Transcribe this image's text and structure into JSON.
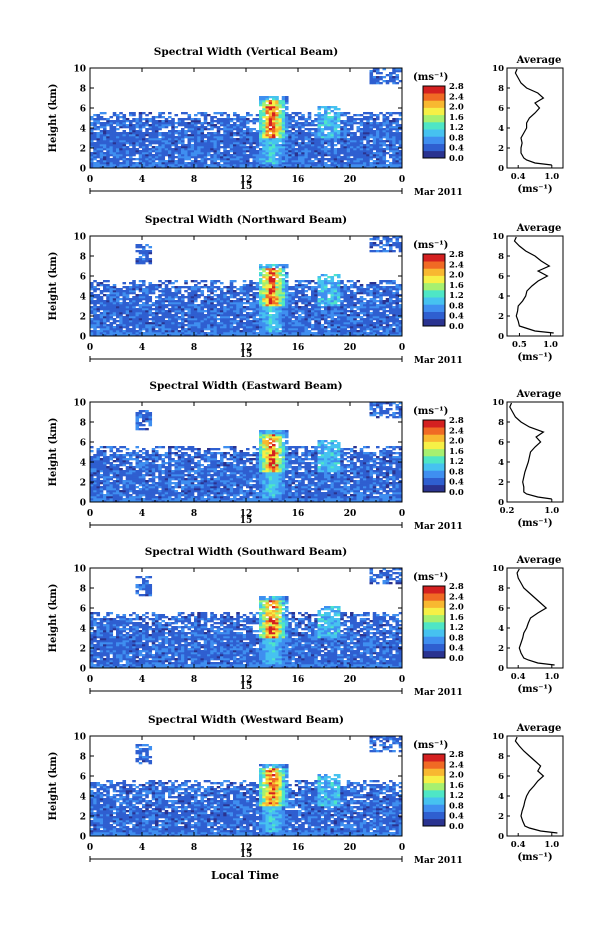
{
  "figure": {
    "xlabel": "Local Time",
    "date_label": "Mar 2011",
    "day_label": "15"
  },
  "colorbar": {
    "unit": "(ms⁻¹)",
    "tick_labels": [
      "2.8",
      "2.4",
      "2.0",
      "1.6",
      "1.2",
      "0.8",
      "0.4",
      "0.0"
    ],
    "colors": [
      "#2a3390",
      "#2f5fd0",
      "#3f8ff0",
      "#46c2f0",
      "#4ee6c6",
      "#a6f070",
      "#f6f046",
      "#f8b830",
      "#f06a24",
      "#d42020"
    ]
  },
  "chart_data": [
    {
      "type": "heatmap",
      "title": "Spectral Width (Vertical Beam)",
      "ylabel": "Height (km)",
      "xlim": [
        0,
        24
      ],
      "ylim": [
        0,
        10
      ],
      "x_ticks": [
        "0",
        "4",
        "8",
        "12",
        "16",
        "20",
        "0"
      ],
      "y_ticks": [
        "0",
        "2",
        "4",
        "6",
        "8",
        "10"
      ],
      "zlim": [
        0.0,
        2.8
      ],
      "profile": {
        "title": "Average",
        "xlabel": "(ms⁻¹)",
        "x_ticks": [
          "0.4",
          "1.0"
        ],
        "xlim": [
          0.2,
          1.2
        ],
        "y_ticks": [
          "0",
          "2",
          "4",
          "6",
          "8",
          "10"
        ],
        "height": [
          0.3,
          0.5,
          0.8,
          1.0,
          1.5,
          2.0,
          2.5,
          3.0,
          3.5,
          4.0,
          4.5,
          5.0,
          5.5,
          6.0,
          6.5,
          7.0,
          7.5,
          8.0,
          8.5,
          9.0,
          9.5,
          9.9
        ],
        "value": [
          1.0,
          0.7,
          0.55,
          0.5,
          0.45,
          0.45,
          0.47,
          0.45,
          0.5,
          0.55,
          0.55,
          0.6,
          0.7,
          0.78,
          0.7,
          0.85,
          0.75,
          0.55,
          0.45,
          0.4,
          0.35,
          0.38
        ]
      }
    },
    {
      "type": "heatmap",
      "title": "Spectral Width (Northward Beam)",
      "ylabel": "Height (km)",
      "xlim": [
        0,
        24
      ],
      "ylim": [
        0,
        10
      ],
      "x_ticks": [
        "0",
        "4",
        "8",
        "12",
        "16",
        "20",
        "0"
      ],
      "y_ticks": [
        "0",
        "2",
        "4",
        "6",
        "8",
        "10"
      ],
      "zlim": [
        0.0,
        2.8
      ],
      "profile": {
        "title": "Average",
        "xlabel": "(ms⁻¹)",
        "x_ticks": [
          "0.5",
          "1.0"
        ],
        "xlim": [
          0.3,
          1.2
        ],
        "y_ticks": [
          "0",
          "2",
          "4",
          "6",
          "8",
          "10"
        ],
        "height": [
          0.3,
          0.5,
          0.8,
          1.0,
          1.5,
          2.0,
          2.5,
          3.0,
          3.5,
          4.0,
          4.5,
          5.0,
          5.5,
          6.0,
          6.5,
          7.0,
          7.5,
          8.0,
          8.5,
          9.0,
          9.5,
          9.9
        ],
        "value": [
          1.05,
          0.75,
          0.6,
          0.5,
          0.48,
          0.45,
          0.47,
          0.48,
          0.55,
          0.6,
          0.62,
          0.7,
          0.8,
          0.95,
          0.8,
          0.98,
          0.85,
          0.75,
          0.6,
          0.5,
          0.42,
          0.45
        ]
      }
    },
    {
      "type": "heatmap",
      "title": "Spectral Width (Eastward Beam)",
      "ylabel": "Height (km)",
      "xlim": [
        0,
        24
      ],
      "ylim": [
        0,
        10
      ],
      "x_ticks": [
        "0",
        "4",
        "8",
        "12",
        "16",
        "20",
        "0"
      ],
      "y_ticks": [
        "0",
        "2",
        "4",
        "6",
        "8",
        "10"
      ],
      "zlim": [
        0.0,
        2.8
      ],
      "profile": {
        "title": "Average",
        "xlabel": "(ms⁻¹)",
        "x_ticks": [
          "0.2",
          "1.0"
        ],
        "xlim": [
          0.2,
          1.2
        ],
        "y_ticks": [
          "0",
          "2",
          "4",
          "6",
          "8",
          "10"
        ],
        "height": [
          0.3,
          0.5,
          0.8,
          1.0,
          1.5,
          2.0,
          2.5,
          3.0,
          3.5,
          4.0,
          4.5,
          5.0,
          5.5,
          6.0,
          6.5,
          7.0,
          7.5,
          8.0,
          8.5,
          9.0,
          9.5,
          9.9
        ],
        "value": [
          1.0,
          0.75,
          0.55,
          0.5,
          0.5,
          0.48,
          0.5,
          0.52,
          0.55,
          0.58,
          0.6,
          0.62,
          0.7,
          0.8,
          0.72,
          0.85,
          0.6,
          0.45,
          0.35,
          0.3,
          0.25,
          0.28
        ]
      }
    },
    {
      "type": "heatmap",
      "title": "Spectral Width (Southward Beam)",
      "ylabel": "Height (km)",
      "xlim": [
        0,
        24
      ],
      "ylim": [
        0,
        10
      ],
      "x_ticks": [
        "0",
        "4",
        "8",
        "12",
        "16",
        "20",
        "0"
      ],
      "y_ticks": [
        "0",
        "2",
        "4",
        "6",
        "8",
        "10"
      ],
      "zlim": [
        0.0,
        2.8
      ],
      "profile": {
        "title": "Average",
        "xlabel": "(ms⁻¹)",
        "x_ticks": [
          "0.4",
          "1.0"
        ],
        "xlim": [
          0.2,
          1.2
        ],
        "y_ticks": [
          "0",
          "2",
          "4",
          "6",
          "8",
          "10"
        ],
        "height": [
          0.3,
          0.5,
          0.8,
          1.0,
          1.5,
          2.0,
          2.5,
          3.0,
          3.5,
          4.0,
          4.5,
          5.0,
          5.5,
          6.0,
          6.5,
          7.0,
          7.5,
          8.0,
          8.5,
          9.0,
          9.5,
          9.9
        ],
        "value": [
          1.05,
          0.75,
          0.58,
          0.5,
          0.45,
          0.42,
          0.45,
          0.48,
          0.5,
          0.55,
          0.58,
          0.62,
          0.75,
          0.9,
          0.8,
          0.7,
          0.6,
          0.5,
          0.45,
          0.4,
          0.38,
          0.42
        ]
      }
    },
    {
      "type": "heatmap",
      "title": "Spectral Width (Westward Beam)",
      "ylabel": "Height (km)",
      "xlim": [
        0,
        24
      ],
      "ylim": [
        0,
        10
      ],
      "x_ticks": [
        "0",
        "4",
        "8",
        "12",
        "16",
        "20",
        "0"
      ],
      "y_ticks": [
        "0",
        "2",
        "4",
        "6",
        "8",
        "10"
      ],
      "zlim": [
        0.0,
        2.8
      ],
      "profile": {
        "title": "Average",
        "xlabel": "(ms⁻¹)",
        "x_ticks": [
          "0.4",
          "1.0"
        ],
        "xlim": [
          0.2,
          1.2
        ],
        "y_ticks": [
          "0",
          "2",
          "4",
          "6",
          "8",
          "10"
        ],
        "height": [
          0.3,
          0.5,
          0.8,
          1.0,
          1.5,
          2.0,
          2.5,
          3.0,
          3.5,
          4.0,
          4.5,
          5.0,
          5.5,
          6.0,
          6.5,
          7.0,
          7.5,
          8.0,
          8.5,
          9.0,
          9.5,
          9.9
        ],
        "value": [
          1.1,
          0.8,
          0.6,
          0.52,
          0.48,
          0.45,
          0.47,
          0.5,
          0.52,
          0.55,
          0.6,
          0.68,
          0.75,
          0.85,
          0.75,
          0.8,
          0.7,
          0.6,
          0.5,
          0.42,
          0.35,
          0.38
        ]
      }
    }
  ]
}
